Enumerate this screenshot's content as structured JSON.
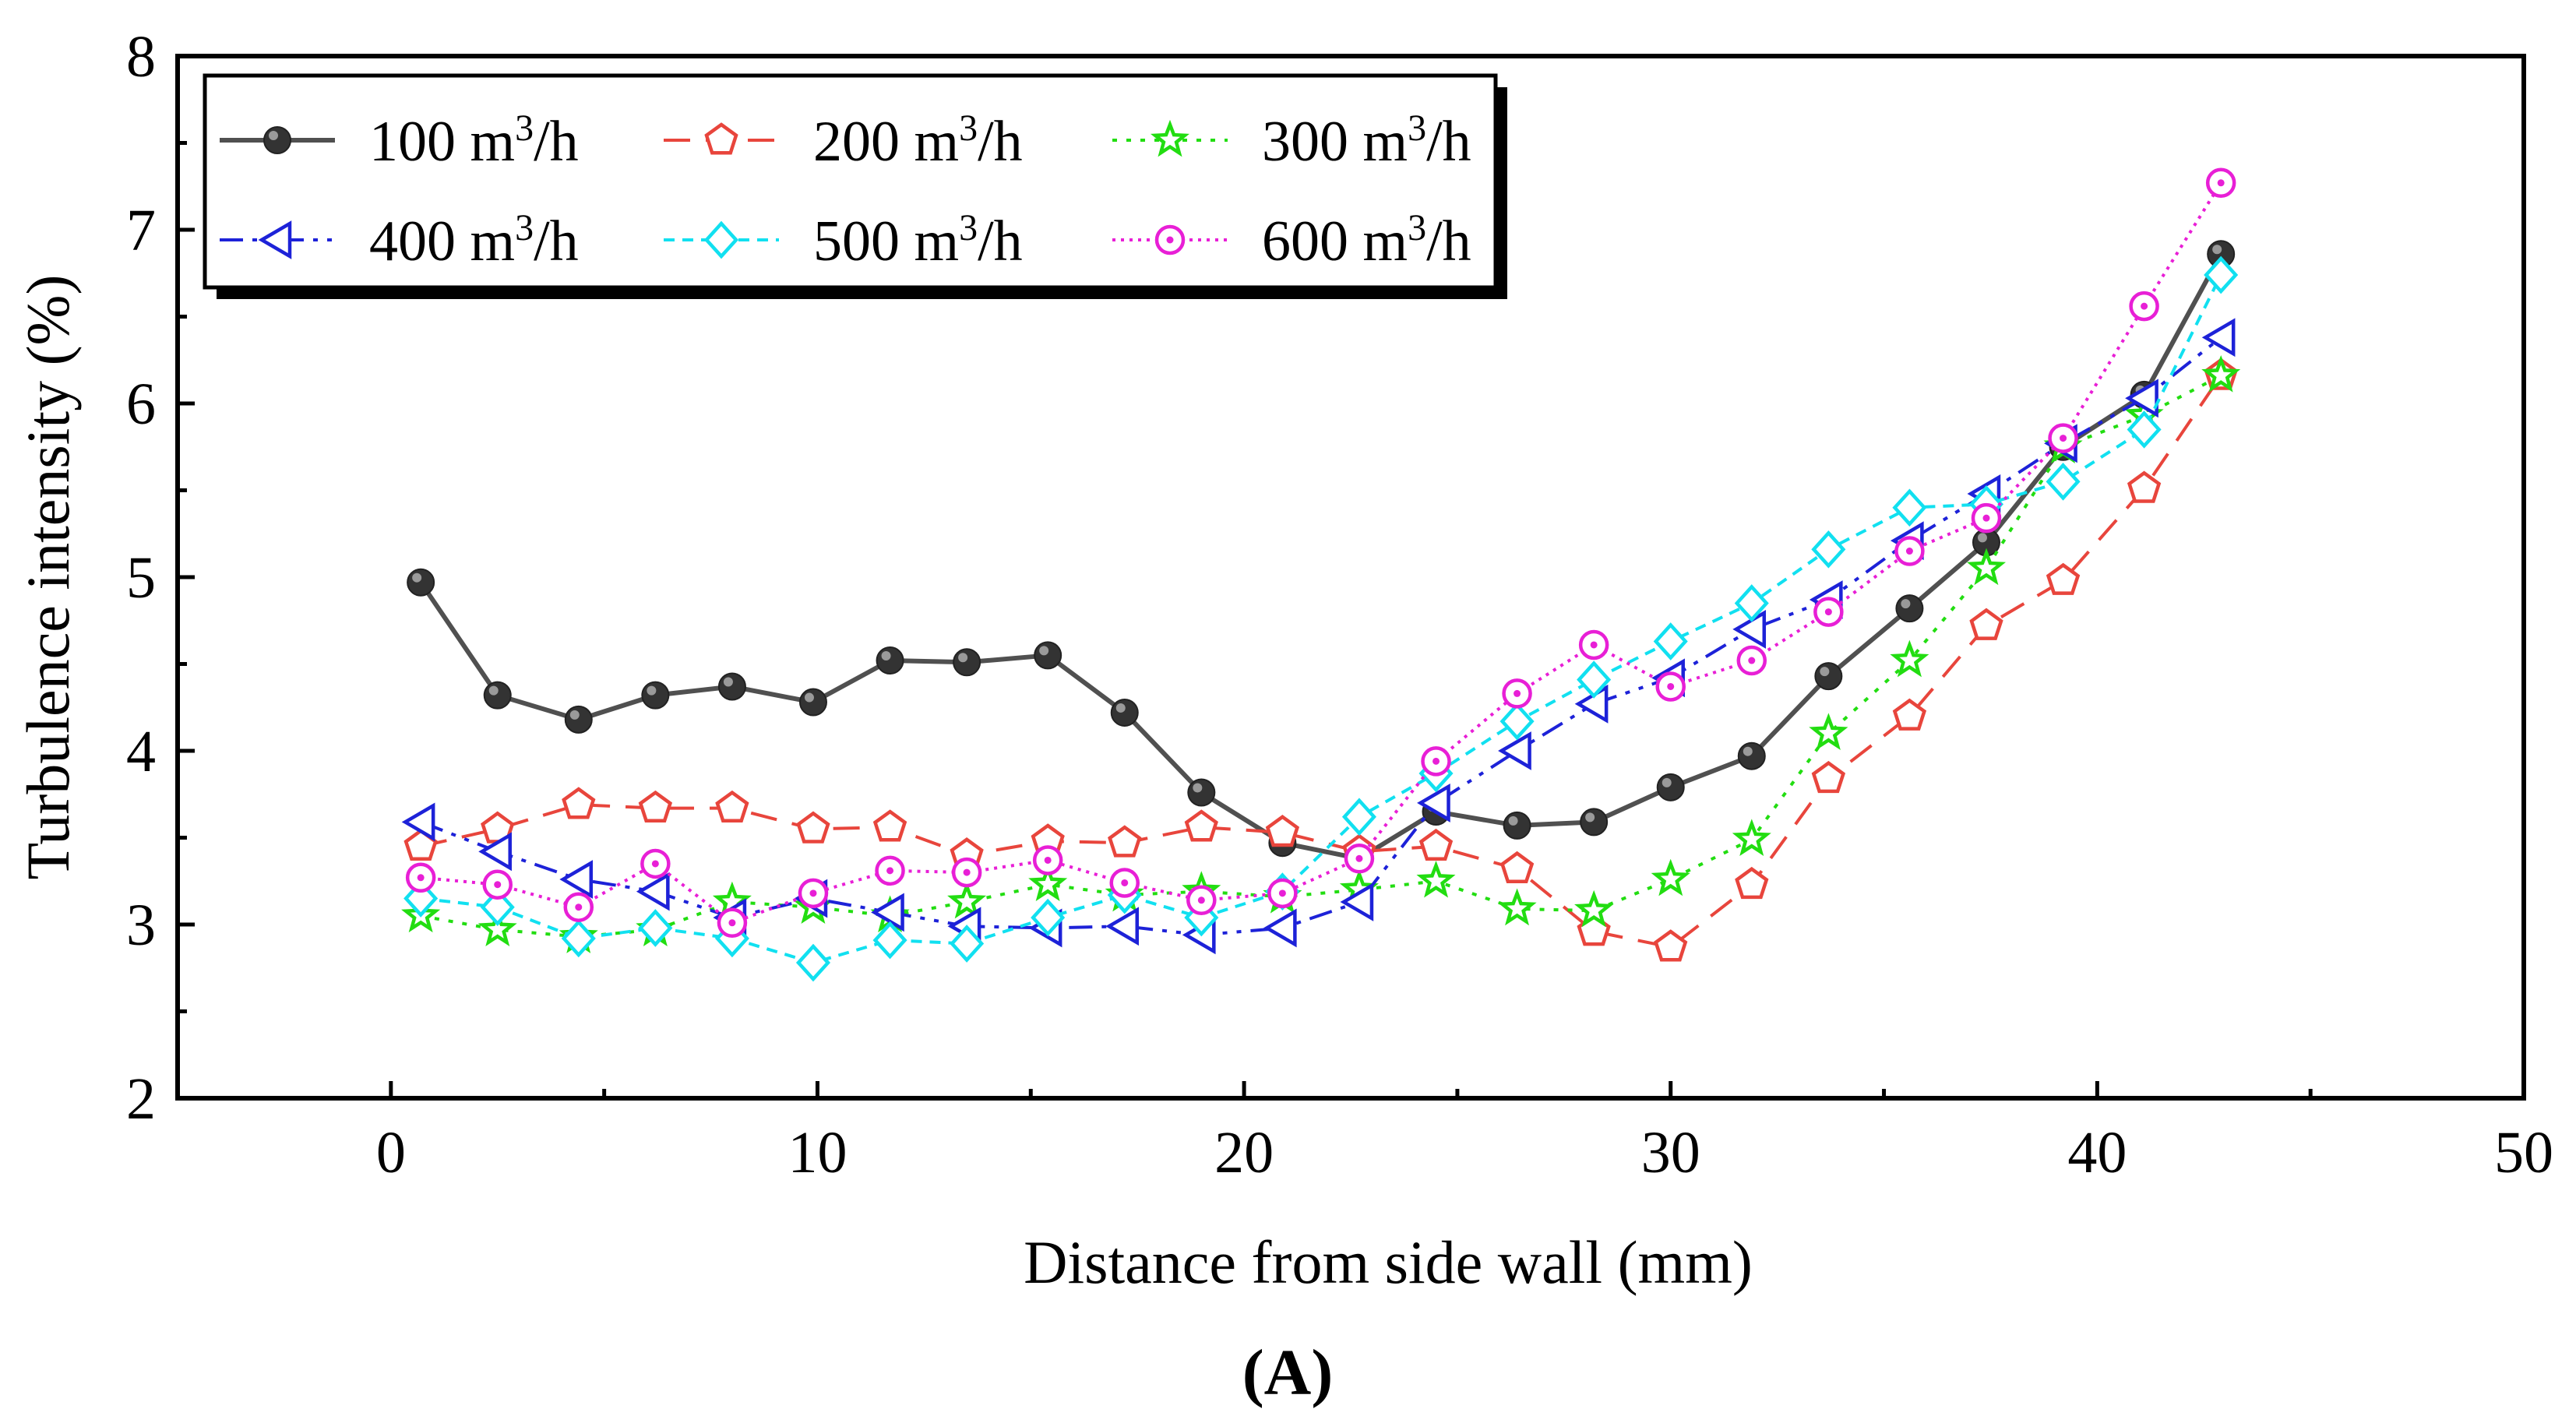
{
  "chart_data": {
    "type": "line",
    "title": "",
    "panel_label": "(A)",
    "xlabel": "Distance from side wall (mm)",
    "ylabel": "Turbulence intensity (%)",
    "xlim": [
      -5,
      50
    ],
    "ylim": [
      2,
      8
    ],
    "xticks": [
      0,
      10,
      20,
      30,
      40,
      50
    ],
    "yticks": [
      2,
      3,
      4,
      5,
      6,
      7,
      8
    ],
    "grid": false,
    "legend_position": "top-left",
    "x": [
      0.7,
      2.5,
      4.4,
      6.2,
      8.0,
      9.9,
      11.7,
      13.5,
      15.4,
      17.2,
      19.0,
      20.9,
      22.7,
      24.5,
      26.4,
      28.2,
      30.0,
      31.9,
      33.7,
      35.6,
      37.4,
      39.2,
      41.1,
      42.9
    ],
    "series": [
      {
        "name": "100 m³/h",
        "base": "100 m",
        "sup": "3",
        "unit": "/h",
        "color": "#505050",
        "dash": "",
        "marker": "ball",
        "values": [
          4.97,
          4.32,
          4.18,
          4.32,
          4.37,
          4.28,
          4.52,
          4.51,
          4.55,
          4.22,
          3.76,
          3.47,
          3.38,
          3.65,
          3.57,
          3.59,
          3.79,
          3.97,
          4.43,
          4.82,
          5.2,
          5.75,
          6.05,
          6.86
        ]
      },
      {
        "name": "200 m³/h",
        "base": "200 m",
        "sup": "3",
        "unit": "/h",
        "color": "#e8453c",
        "dash": "34 20",
        "marker": "pentagon",
        "values": [
          3.45,
          3.55,
          3.69,
          3.67,
          3.67,
          3.55,
          3.56,
          3.4,
          3.48,
          3.47,
          3.56,
          3.53,
          3.42,
          3.45,
          3.32,
          2.96,
          2.87,
          3.23,
          3.84,
          4.2,
          4.72,
          4.98,
          5.51,
          6.16
        ]
      },
      {
        "name": "300 m³/h",
        "base": "300 m",
        "sup": "3",
        "unit": "/h",
        "color": "#22dd11",
        "dash": "6 12",
        "marker": "star",
        "values": [
          3.05,
          2.97,
          2.93,
          2.97,
          3.13,
          3.1,
          3.05,
          3.13,
          3.23,
          3.17,
          3.19,
          3.16,
          3.2,
          3.25,
          3.09,
          3.08,
          3.26,
          3.49,
          4.1,
          4.52,
          5.05,
          5.75,
          5.93,
          6.16
        ]
      },
      {
        "name": "400 m³/h",
        "base": "400 m",
        "sup": "3",
        "unit": "/h",
        "color": "#1d22d8",
        "dash": "30 12 6 12 6 12",
        "marker": "triangle-left",
        "values": [
          3.59,
          3.42,
          3.26,
          3.19,
          3.04,
          3.15,
          3.07,
          2.99,
          2.98,
          2.99,
          2.94,
          2.98,
          3.13,
          3.7,
          4.0,
          4.27,
          4.42,
          4.7,
          4.87,
          5.21,
          5.48,
          5.77,
          6.03,
          6.38
        ]
      },
      {
        "name": "500 m³/h",
        "base": "500 m",
        "sup": "3",
        "unit": "/h",
        "color": "#11e0f0",
        "dash": "14 10",
        "marker": "diamond",
        "values": [
          3.15,
          3.1,
          2.92,
          2.98,
          2.92,
          2.78,
          2.91,
          2.89,
          3.04,
          3.17,
          3.04,
          3.19,
          3.62,
          3.87,
          4.17,
          4.41,
          4.63,
          4.85,
          5.16,
          5.4,
          5.42,
          5.55,
          5.85,
          6.74
        ]
      },
      {
        "name": "600 m³/h",
        "base": "600 m",
        "sup": "3",
        "unit": "/h",
        "color": "#e81fd6",
        "dash": "4 7",
        "marker": "circle-dot",
        "values": [
          3.27,
          3.23,
          3.1,
          3.35,
          3.01,
          3.18,
          3.31,
          3.3,
          3.37,
          3.24,
          3.14,
          3.18,
          3.38,
          3.94,
          4.33,
          4.61,
          4.37,
          4.52,
          4.8,
          5.15,
          5.34,
          5.8,
          6.56,
          7.27
        ]
      }
    ]
  }
}
